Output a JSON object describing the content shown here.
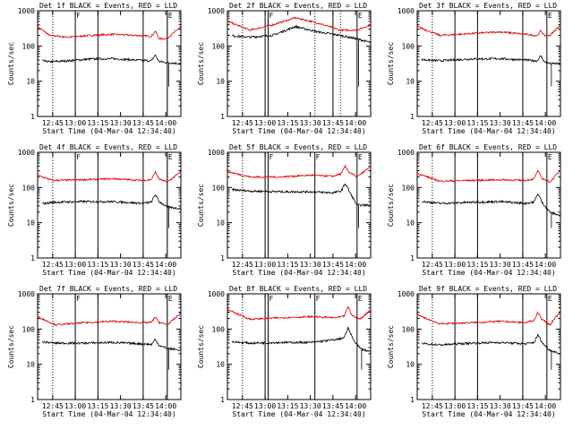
{
  "colors": {
    "events": "#000000",
    "lld": "#e00000",
    "axes": "#000000",
    "background": "#ffffff"
  },
  "chart_data": {
    "type": "line",
    "ylabel": "Counts/sec",
    "xlabel": "Start Time (04-Mar-04 12:34:40)",
    "yscale": "log",
    "ylim": [
      1,
      1000
    ],
    "yticks": [
      "1",
      "10",
      "100",
      "1000"
    ],
    "x_minutes": [
      0,
      95
    ],
    "tick_minutes": [
      10,
      25,
      40,
      55,
      70,
      85
    ],
    "panels": [
      {
        "title": "Det 1f BLACK = Events, RED = LLD",
        "xticks": [
          "12:45",
          "13:00",
          "13:15",
          "13:30",
          "13:45",
          "14:00"
        ],
        "flags": [
          {
            "min": 25,
            "label": "F"
          },
          {
            "min": 40,
            "label": ""
          },
          {
            "min": 70,
            "label": ""
          },
          {
            "min": 86,
            "label": "E"
          }
        ],
        "dotted": [
          10,
          86
        ],
        "spikes": [
          {
            "min": 78,
            "amp": 0.18
          }
        ],
        "red_base": 1.8,
        "black_base": 1.55,
        "curve": [
          [
            0,
            2.55,
            1.6
          ],
          [
            8,
            2.3,
            1.55
          ],
          [
            20,
            2.25,
            1.58
          ],
          [
            35,
            2.3,
            1.63
          ],
          [
            50,
            2.33,
            1.64
          ],
          [
            65,
            2.3,
            1.6
          ],
          [
            75,
            2.28,
            1.58
          ],
          [
            82,
            2.2,
            1.55
          ],
          [
            86,
            2.22,
            1.53
          ],
          [
            95,
            2.55,
            1.5
          ]
        ]
      },
      {
        "title": "Det 2f BLACK = Events, RED = LLD",
        "xticks": [
          "12:45",
          "13:00",
          "13:15",
          "13:30",
          "13:45",
          "14:00"
        ],
        "flags": [
          {
            "min": 25,
            "label": ""
          },
          {
            "min": 27,
            "label": "F"
          },
          {
            "min": 70,
            "label": ""
          },
          {
            "min": 86,
            "label": "E"
          }
        ],
        "dotted": [
          10,
          58,
          75
        ],
        "spikes": [],
        "red_base": 2.5,
        "black_base": 2.2,
        "curve": [
          [
            0,
            2.7,
            2.3
          ],
          [
            15,
            2.45,
            2.25
          ],
          [
            30,
            2.6,
            2.3
          ],
          [
            45,
            2.8,
            2.55
          ],
          [
            60,
            2.65,
            2.4
          ],
          [
            75,
            2.45,
            2.3
          ],
          [
            86,
            2.45,
            2.2
          ],
          [
            95,
            2.6,
            2.1
          ]
        ]
      },
      {
        "title": "Det 3f BLACK = Events, RED = LLD",
        "xticks": [
          "12:45",
          "13:00",
          "13:15",
          "13:30",
          "13:45",
          "14:00"
        ],
        "flags": [
          {
            "min": 25,
            "label": ""
          },
          {
            "min": 40,
            "label": ""
          },
          {
            "min": 70,
            "label": ""
          },
          {
            "min": 86,
            "label": "E"
          }
        ],
        "dotted": [
          10
        ],
        "spikes": [
          {
            "min": 82,
            "amp": 0.15
          }
        ],
        "red_base": 2.3,
        "black_base": 1.6,
        "curve": [
          [
            0,
            2.55,
            1.62
          ],
          [
            15,
            2.3,
            1.58
          ],
          [
            35,
            2.35,
            1.63
          ],
          [
            55,
            2.4,
            1.64
          ],
          [
            72,
            2.33,
            1.6
          ],
          [
            82,
            2.28,
            1.57
          ],
          [
            88,
            2.3,
            1.5
          ],
          [
            95,
            2.6,
            1.5
          ]
        ]
      },
      {
        "title": "Det 4f BLACK = Events, RED = LLD",
        "xticks": [
          "12:45",
          "13:00",
          "13:15",
          "13:30",
          "13:45",
          "14:00"
        ],
        "flags": [
          {
            "min": 25,
            "label": "F"
          },
          {
            "min": 40,
            "label": ""
          },
          {
            "min": 70,
            "label": ""
          },
          {
            "min": 86,
            "label": "E"
          }
        ],
        "dotted": [
          10,
          86
        ],
        "spikes": [
          {
            "min": 78,
            "amp": 0.2
          }
        ],
        "red_base": 2.2,
        "black_base": 1.6,
        "curve": [
          [
            0,
            2.35,
            1.52
          ],
          [
            10,
            2.2,
            1.58
          ],
          [
            30,
            2.22,
            1.6
          ],
          [
            50,
            2.25,
            1.6
          ],
          [
            70,
            2.2,
            1.55
          ],
          [
            80,
            2.25,
            1.62
          ],
          [
            86,
            2.15,
            1.45
          ],
          [
            95,
            2.45,
            1.4
          ]
        ]
      },
      {
        "title": "Det 5f BLACK = Events, RED = LLD",
        "xticks": [
          "12:45",
          "13:00",
          "13:15",
          "13:30",
          "13:45",
          "14:00"
        ],
        "flags": [
          {
            "min": 25,
            "label": ""
          },
          {
            "min": 27,
            "label": "F"
          },
          {
            "min": 58,
            "label": "F"
          },
          {
            "min": 86,
            "label": "E"
          }
        ],
        "dotted": [
          10
        ],
        "spikes": [
          {
            "min": 78,
            "amp": 0.18
          }
        ],
        "red_base": 2.3,
        "black_base": 1.9,
        "curve": [
          [
            0,
            2.45,
            1.95
          ],
          [
            15,
            2.3,
            1.9
          ],
          [
            35,
            2.3,
            1.88
          ],
          [
            55,
            2.35,
            1.88
          ],
          [
            70,
            2.32,
            1.85
          ],
          [
            80,
            2.45,
            1.95
          ],
          [
            86,
            2.3,
            1.5
          ],
          [
            95,
            2.6,
            1.5
          ]
        ]
      },
      {
        "title": "Det 6f BLACK = Events, RED = LLD",
        "xticks": [
          "12:45",
          "13:00",
          "13:15",
          "13:30",
          "13:45",
          "14:00"
        ],
        "flags": [
          {
            "min": 25,
            "label": ""
          },
          {
            "min": 40,
            "label": ""
          },
          {
            "min": 70,
            "label": ""
          },
          {
            "min": 86,
            "label": "E"
          }
        ],
        "dotted": [
          10
        ],
        "spikes": [
          {
            "min": 80,
            "amp": 0.22
          }
        ],
        "red_base": 2.2,
        "black_base": 1.55,
        "curve": [
          [
            0,
            2.4,
            1.62
          ],
          [
            15,
            2.18,
            1.55
          ],
          [
            35,
            2.2,
            1.58
          ],
          [
            55,
            2.22,
            1.6
          ],
          [
            72,
            2.2,
            1.55
          ],
          [
            82,
            2.28,
            1.62
          ],
          [
            88,
            2.15,
            1.3
          ],
          [
            95,
            2.5,
            1.2
          ]
        ]
      },
      {
        "title": "Det 7f BLACK = Events, RED = LLD",
        "xticks": [
          "12:45",
          "13:00",
          "13:15",
          "13:30",
          "13:45",
          "14:00"
        ],
        "flags": [
          {
            "min": 25,
            "label": "F"
          },
          {
            "min": 40,
            "label": ""
          },
          {
            "min": 70,
            "label": ""
          },
          {
            "min": 86,
            "label": "E"
          }
        ],
        "dotted": [
          10,
          86
        ],
        "spikes": [
          {
            "min": 78,
            "amp": 0.15
          }
        ],
        "red_base": 2.1,
        "black_base": 1.6,
        "curve": [
          [
            0,
            2.35,
            1.65
          ],
          [
            12,
            2.12,
            1.6
          ],
          [
            30,
            2.18,
            1.6
          ],
          [
            50,
            2.22,
            1.62
          ],
          [
            70,
            2.18,
            1.58
          ],
          [
            80,
            2.2,
            1.55
          ],
          [
            86,
            2.12,
            1.45
          ],
          [
            95,
            2.45,
            1.4
          ]
        ]
      },
      {
        "title": "Det 8f BLACK = Events, RED = LLD",
        "xticks": [
          "12:45",
          "13:00",
          "13:15",
          "13:30",
          "13:45",
          "14:00"
        ],
        "flags": [
          {
            "min": 25,
            "label": ""
          },
          {
            "min": 27,
            "label": "F"
          },
          {
            "min": 58,
            "label": "F"
          },
          {
            "min": 86,
            "label": "E"
          }
        ],
        "dotted": [
          10
        ],
        "spikes": [
          {
            "min": 80,
            "amp": 0.25
          }
        ],
        "red_base": 2.3,
        "black_base": 1.6,
        "curve": [
          [
            0,
            2.55,
            1.65
          ],
          [
            15,
            2.28,
            1.6
          ],
          [
            35,
            2.32,
            1.62
          ],
          [
            55,
            2.35,
            1.62
          ],
          [
            72,
            2.32,
            1.7
          ],
          [
            82,
            2.4,
            1.8
          ],
          [
            88,
            2.28,
            1.45
          ],
          [
            95,
            2.55,
            1.35
          ]
        ]
      },
      {
        "title": "Det 9f BLACK = Events, RED = LLD",
        "xticks": [
          "12:45",
          "13:00",
          "13:15",
          "13:30",
          "13:45",
          "14:00"
        ],
        "flags": [
          {
            "min": 25,
            "label": ""
          },
          {
            "min": 40,
            "label": ""
          },
          {
            "min": 70,
            "label": ""
          },
          {
            "min": 86,
            "label": "E"
          }
        ],
        "dotted": [
          10
        ],
        "spikes": [
          {
            "min": 80,
            "amp": 0.2
          }
        ],
        "red_base": 2.2,
        "black_base": 1.6,
        "curve": [
          [
            0,
            2.4,
            1.6
          ],
          [
            15,
            2.15,
            1.55
          ],
          [
            35,
            2.18,
            1.6
          ],
          [
            55,
            2.22,
            1.62
          ],
          [
            72,
            2.18,
            1.58
          ],
          [
            82,
            2.3,
            1.65
          ],
          [
            88,
            2.12,
            1.4
          ],
          [
            95,
            2.5,
            1.3
          ]
        ]
      }
    ]
  }
}
